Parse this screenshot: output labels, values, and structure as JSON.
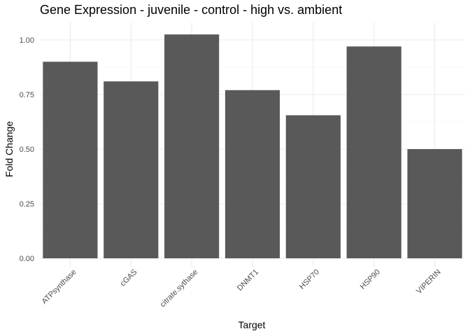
{
  "chart_data": {
    "type": "bar",
    "title": "Gene Expression - juvenile - control - high vs. ambient",
    "xlabel": "Target",
    "ylabel": "Fold Change",
    "categories": [
      "ATPsynthase",
      "cGAS",
      "citrate.sythase",
      "DNMT1",
      "HSP70",
      "HSP90",
      "VIPERIN"
    ],
    "values": [
      0.9,
      0.81,
      1.025,
      0.77,
      0.655,
      0.97,
      0.5
    ],
    "ylim": [
      0,
      1.075
    ],
    "yticks": [
      0,
      0.25,
      0.5,
      0.75,
      1.0
    ],
    "ytick_labels": [
      "0.00",
      "0.25",
      "0.50",
      "0.75",
      "1.00"
    ],
    "grid": true,
    "legend": "none",
    "colors": {
      "bar": "#595959",
      "grid_major": "#ebebeb",
      "grid_minor": "#f3f3f3",
      "tick_label": "#4d4d4d",
      "text": "#000000"
    }
  }
}
